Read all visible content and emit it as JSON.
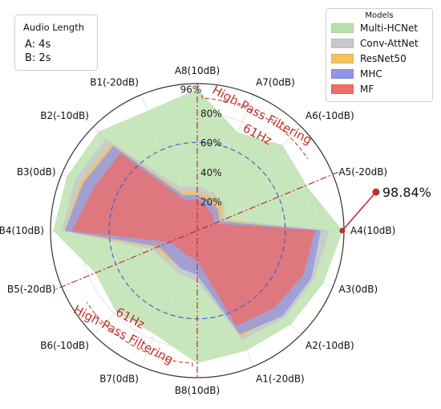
{
  "info_box": {
    "title": "Audio Length",
    "a": "A:  4s",
    "b": "B:  2s"
  },
  "legend_title": "Models",
  "annotations": {
    "peak": "98.84%",
    "hpf_top": "High-Pass Filtering",
    "hz_top": "61Hz",
    "hpf_bottom": "High-Pass Filtering",
    "hz_bottom": "61Hz"
  },
  "colors": {
    "Multi-HCNet": "#b9dfa8",
    "Conv-AttNet": "#c7c7cc",
    "ResNet50": "#f2c25e",
    "MHC": "#8f96ea",
    "MF": "#ee6d66",
    "annotation": "#c0302a",
    "dashed_circle": "#3a5bd0"
  },
  "chart_data": {
    "type": "radar",
    "categories": [
      "A8(10dB)",
      "A7(0dB)",
      "A6(-10dB)",
      "A5(-20dB)",
      "A4(10dB)",
      "A3(0dB)",
      "A2(-10dB)",
      "A1(-20dB)",
      "B8(10dB)",
      "B7(0dB)",
      "B6(-10dB)",
      "B5(-20dB)",
      "B4(10dB)",
      "B3(0dB)",
      "B2(-10dB)",
      "B1(-20dB)"
    ],
    "radial_ticks": [
      "20%",
      "40%",
      "60%",
      "80%",
      "96%"
    ],
    "radial_tick_values": [
      20,
      40,
      60,
      80,
      96
    ],
    "rlim": [
      0,
      100
    ],
    "series": [
      {
        "name": "Multi-HCNet",
        "values": [
          96,
          72,
          82,
          80,
          98.84,
          93,
          90,
          88,
          90,
          76,
          78,
          75,
          98,
          96,
          95,
          88
        ]
      },
      {
        "name": "Conv-AttNet",
        "values": [
          30,
          28,
          26,
          20,
          90,
          86,
          84,
          80,
          34,
          32,
          30,
          33,
          92,
          90,
          88,
          32
        ]
      },
      {
        "name": "ResNet50",
        "values": [
          26,
          25,
          24,
          18,
          82,
          82,
          80,
          78,
          28,
          26,
          28,
          30,
          90,
          86,
          83,
          28
        ]
      },
      {
        "name": "MHC",
        "values": [
          24,
          22,
          20,
          16,
          84,
          84,
          82,
          76,
          30,
          28,
          26,
          28,
          90,
          84,
          81,
          26
        ]
      },
      {
        "name": "MF",
        "values": [
          21,
          17,
          15,
          12,
          80,
          78,
          74,
          70,
          20,
          18,
          17,
          20,
          85,
          76,
          74,
          22
        ]
      }
    ]
  }
}
